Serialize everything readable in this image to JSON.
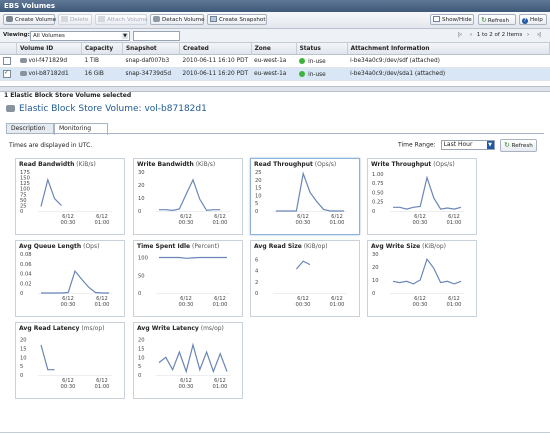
{
  "window": {
    "title": "EBS Volumes"
  },
  "toolbar": {
    "create_volume": "Create Volume",
    "delete": "Delete",
    "attach_volume": "Attach Volume",
    "detach_volume": "Detach Volume",
    "create_snapshot": "Create Snapshot",
    "show_hide": "Show/Hide",
    "refresh": "Refresh",
    "help": "Help"
  },
  "filter": {
    "label": "Viewing:",
    "value": "All Volumes",
    "pager": "1 to 2 of 2 Items"
  },
  "table": {
    "columns": [
      "Volume ID",
      "Capacity",
      "Snapshot",
      "Created",
      "Zone",
      "Status",
      "Attachment Information"
    ],
    "rows": [
      {
        "checked": false,
        "id": "vol-f471829d",
        "capacity": "1 TiB",
        "snapshot": "snap-daf007b3",
        "created": "2010-06-11 16:10 PDT",
        "zone": "eu-west-1a",
        "status": "in-use",
        "attachment": "i-be34a0c9:/dev/sdf (attached)"
      },
      {
        "checked": true,
        "id": "vol-b87182d1",
        "capacity": "16 GiB",
        "snapshot": "snap-34739d5d",
        "created": "2010-06-11 16:20 PDT",
        "zone": "eu-west-1a",
        "status": "in-use",
        "attachment": "i-be34a0c9:/dev/sda1 (attached)"
      }
    ]
  },
  "detail": {
    "selected_info": "1 Elastic Block Store Volume selected",
    "title_prefix": "Elastic Block Store Volume:",
    "title_id": "vol-b87182d1",
    "tabs": [
      "Description",
      "Monitoring"
    ],
    "active_tab": "Monitoring",
    "utc_note": "Times are displayed in UTC.",
    "time_range_label": "Time Range:",
    "time_range_value": "Last Hour",
    "refresh": "Refresh"
  },
  "colors": {
    "line": "#6a86b6",
    "accent": "#1f5a94",
    "status_green": "#3cb43c"
  },
  "chart_data": [
    {
      "type": "line",
      "title": "Read Bandwidth",
      "unit": "(KiB/s)",
      "yticks": [
        "175",
        "150",
        "125",
        "100",
        "75",
        "50",
        "25",
        "0"
      ],
      "ylim": [
        0,
        175
      ],
      "xticks": [
        "6/12\n00:30",
        "6/12\n01:00"
      ],
      "x": [
        0,
        1,
        2,
        3
      ],
      "values": [
        20,
        140,
        55,
        25
      ]
    },
    {
      "type": "line",
      "title": "Write Bandwidth",
      "unit": "(KiB/s)",
      "yticks": [
        "30",
        "20",
        "10",
        "0"
      ],
      "ylim": [
        0,
        30
      ],
      "xticks": [
        "6/12\n00:30",
        "6/12\n01:00"
      ],
      "x": [
        0,
        1,
        2,
        3,
        4,
        5,
        6,
        7,
        8,
        9
      ],
      "values": [
        1,
        1,
        0.5,
        1.5,
        13,
        24,
        9,
        0.5,
        1,
        1
      ]
    },
    {
      "type": "line",
      "title": "Read Throughput",
      "unit": "(Ops/s)",
      "yticks": [
        "25",
        "20",
        "15",
        "10",
        "5",
        "0"
      ],
      "ylim": [
        0,
        25
      ],
      "xticks": [
        "6/12\n00:30",
        "6/12\n01:00"
      ],
      "x": [
        0,
        1,
        2,
        3,
        4,
        5,
        6,
        7,
        8,
        9,
        10
      ],
      "values": [
        0,
        0,
        0,
        0,
        24,
        12,
        6,
        1,
        0,
        0,
        0
      ]
    },
    {
      "type": "line",
      "title": "Write Throughput",
      "unit": "(Ops/s)",
      "yticks": [
        "1.00",
        "0.75",
        "0.50",
        "0.25",
        "0"
      ],
      "ylim": [
        0,
        1.05
      ],
      "xticks": [
        "6/12\n00:30",
        "6/12\n01:00"
      ],
      "x": [
        0,
        1,
        2,
        3,
        4,
        5,
        6,
        7,
        8,
        9,
        10
      ],
      "values": [
        0.1,
        0.1,
        0.05,
        0.1,
        0.12,
        0.9,
        0.35,
        0.05,
        0.08,
        0.05,
        0.1
      ]
    },
    {
      "type": "line",
      "title": "Avg Queue Length",
      "unit": "(Ops)",
      "yticks": [
        "0.08",
        "0.06",
        "0.04",
        "0.02",
        "0"
      ],
      "ylim": [
        0,
        0.08
      ],
      "xticks": [
        "6/12\n00:30",
        "6/12\n01:00"
      ],
      "x": [
        0,
        1,
        2,
        3,
        4,
        5,
        6,
        7,
        8,
        9,
        10
      ],
      "values": [
        0,
        0,
        0,
        0,
        0.001,
        0.045,
        0.028,
        0.012,
        0.001,
        0,
        0
      ]
    },
    {
      "type": "line",
      "title": "Time Spent Idle",
      "unit": "(Percent)",
      "yticks": [
        "100",
        "50",
        "0"
      ],
      "ylim": [
        0,
        110
      ],
      "xticks": [
        "6/12\n00:30",
        "6/12\n01:00"
      ],
      "x": [
        0,
        1,
        2,
        3,
        4,
        5,
        6,
        7,
        8,
        9,
        10
      ],
      "values": [
        100,
        100,
        100,
        100,
        98,
        99,
        100,
        100,
        100,
        100,
        100
      ]
    },
    {
      "type": "line",
      "title": "Avg Read Size",
      "unit": "(KiB/op)",
      "yticks": [
        "6",
        "4",
        "2",
        "0"
      ],
      "ylim": [
        0,
        7
      ],
      "xticks": [
        "6/12\n00:30",
        "6/12\n01:00"
      ],
      "x": [
        3,
        4,
        5
      ],
      "values": [
        4.3,
        5.7,
        5.1
      ]
    },
    {
      "type": "line",
      "title": "Avg Write Size",
      "unit": "(KiB/op)",
      "yticks": [
        "30",
        "20",
        "10",
        "0"
      ],
      "ylim": [
        0,
        30
      ],
      "xticks": [
        "6/12\n00:30",
        "6/12\n01:00"
      ],
      "x": [
        0,
        1,
        2,
        3,
        4,
        5,
        6,
        7,
        8,
        9,
        10
      ],
      "values": [
        9,
        8,
        9,
        7,
        10,
        26,
        19,
        8,
        9,
        7,
        9
      ]
    },
    {
      "type": "line",
      "title": "Avg Read Latency",
      "unit": "(ms/op)",
      "yticks": [
        "20",
        "15",
        "10",
        "5",
        "0"
      ],
      "ylim": [
        0,
        22
      ],
      "xticks": [
        "6/12\n00:30",
        "6/12\n01:00"
      ],
      "x": [
        0,
        1,
        2
      ],
      "values": [
        17,
        3,
        3
      ]
    },
    {
      "type": "line",
      "title": "Avg Write Latency",
      "unit": "(ms/op)",
      "yticks": [
        "20",
        "15",
        "10",
        "5",
        "0"
      ],
      "ylim": [
        0,
        22
      ],
      "xticks": [
        "6/12\n00:30",
        "6/12\n01:00"
      ],
      "x": [
        0,
        1,
        2,
        3,
        4,
        5,
        6,
        7,
        8,
        9,
        10
      ],
      "values": [
        7,
        10,
        3,
        13,
        2,
        17,
        3,
        13,
        2,
        12,
        2
      ]
    }
  ]
}
